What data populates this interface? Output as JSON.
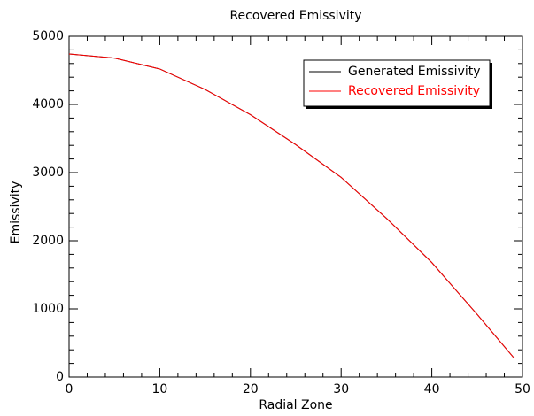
{
  "chart_data": {
    "type": "line",
    "title": "Recovered Emissivity",
    "x_label": "Radial Zone",
    "y_label": "Emissivity",
    "x": [
      0,
      5,
      10,
      15,
      20,
      25,
      30,
      35,
      40,
      45,
      49
    ],
    "series": [
      {
        "name": "Generated Emissivity",
        "color": "#000000",
        "values": [
          4740,
          4680,
          4520,
          4220,
          3850,
          3410,
          2930,
          2330,
          1680,
          920,
          290
        ]
      },
      {
        "name": "Recovered Emissivity",
        "color": "#ff0000",
        "values": [
          4740,
          4680,
          4520,
          4220,
          3850,
          3410,
          2930,
          2330,
          1680,
          920,
          290
        ]
      }
    ],
    "xlim": [
      0,
      50
    ],
    "xticks": [
      0,
      10,
      20,
      30,
      40,
      50
    ],
    "ylim": [
      0,
      5000
    ],
    "yticks": [
      0,
      1000,
      2000,
      3000,
      4000,
      5000
    ],
    "legend": "top-right"
  }
}
